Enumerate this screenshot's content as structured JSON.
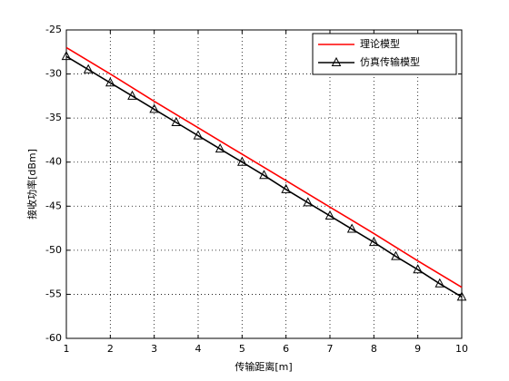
{
  "chart_data": {
    "type": "line",
    "xlabel": "传输距离[m]",
    "ylabel": "接收功率[dBm]",
    "series": [
      {
        "name": "理论模型",
        "color": "#ff0000",
        "marker": false,
        "x": [
          1,
          2,
          3,
          4,
          5,
          6,
          7,
          8,
          9,
          10
        ],
        "values": [
          -27,
          -30,
          -33.1,
          -36.1,
          -39.1,
          -42.1,
          -45.1,
          -48.1,
          -51.2,
          -54.2
        ]
      },
      {
        "name": "仿真传输模型",
        "color": "#000000",
        "marker": true,
        "x": [
          1,
          1.5,
          2,
          2.5,
          3,
          3.5,
          4,
          4.5,
          5,
          5.5,
          6,
          6.5,
          7,
          7.5,
          8,
          8.5,
          9,
          9.5,
          10
        ],
        "values": [
          -28,
          -29.5,
          -31,
          -32.5,
          -34,
          -35.5,
          -37,
          -38.5,
          -40,
          -41.5,
          -43.1,
          -44.6,
          -46.1,
          -47.6,
          -49.1,
          -50.7,
          -52.2,
          -53.8,
          -55.3
        ]
      }
    ],
    "xlim": [
      1,
      10
    ],
    "xticks": [
      1,
      2,
      3,
      4,
      5,
      6,
      7,
      8,
      9,
      10
    ],
    "ylim": [
      -60,
      -25
    ],
    "yticks": [
      -60,
      -55,
      -50,
      -45,
      -40,
      -35,
      -30,
      -25
    ],
    "grid": true,
    "legend": "upper right"
  }
}
